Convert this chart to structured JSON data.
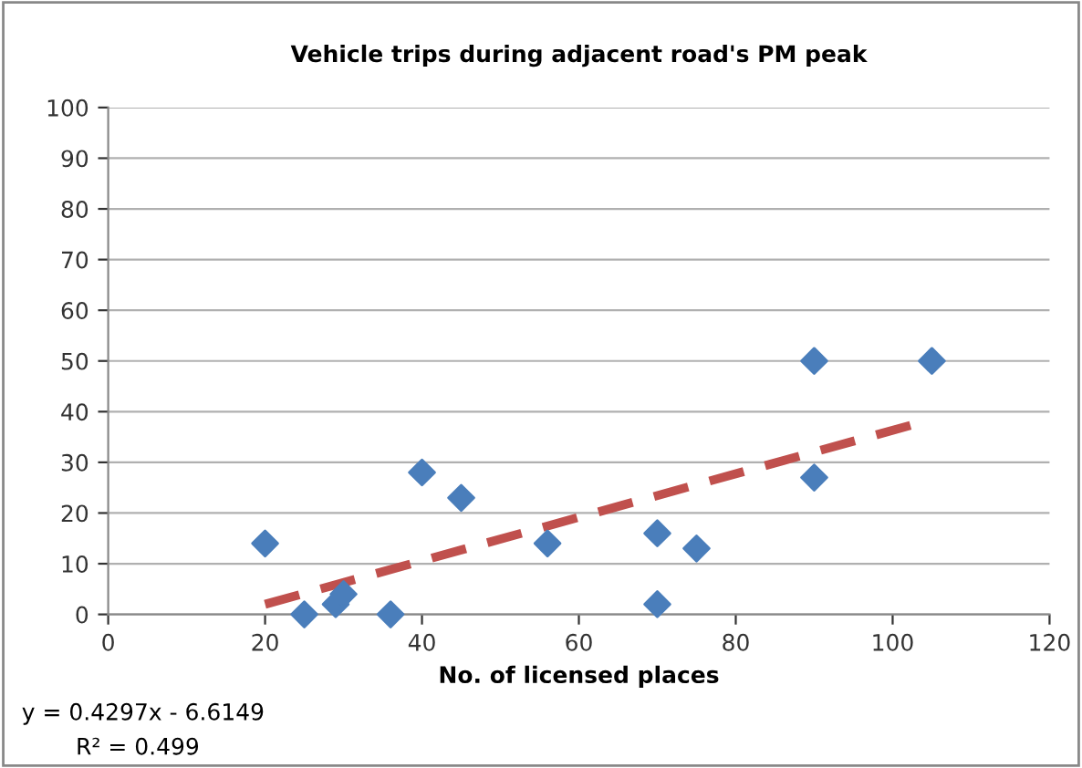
{
  "chart_data": {
    "type": "scatter",
    "title": "Vehicle trips during adjacent road's PM peak",
    "xlabel": "No. of licensed places",
    "series": [
      {
        "color": "#4a7ebb",
        "marker": "diamond",
        "x": [
          20,
          25,
          29,
          30,
          36,
          40,
          45,
          56,
          70,
          70,
          75,
          90,
          90,
          105
        ],
        "values": [
          14,
          0,
          2,
          4,
          0,
          28,
          23,
          14,
          16,
          2,
          13,
          50,
          27,
          50
        ]
      },
      {
        "type": "line",
        "color": "#c0504d",
        "line_style": "dashed",
        "marker": "none",
        "x": [
          20,
          103
        ],
        "values": [
          2,
          37.6
        ]
      }
    ],
    "xlim": [
      0,
      120
    ],
    "xticks": [
      0,
      20,
      40,
      60,
      80,
      100,
      120
    ],
    "ylim": [
      0,
      100
    ],
    "yticks": [
      0,
      10,
      20,
      30,
      40,
      50,
      60,
      70,
      80,
      90,
      100
    ],
    "grid": "y",
    "legend": false,
    "annotations": [
      "y = 0.4297x - 6.6149",
      "R² = 0.499"
    ]
  }
}
